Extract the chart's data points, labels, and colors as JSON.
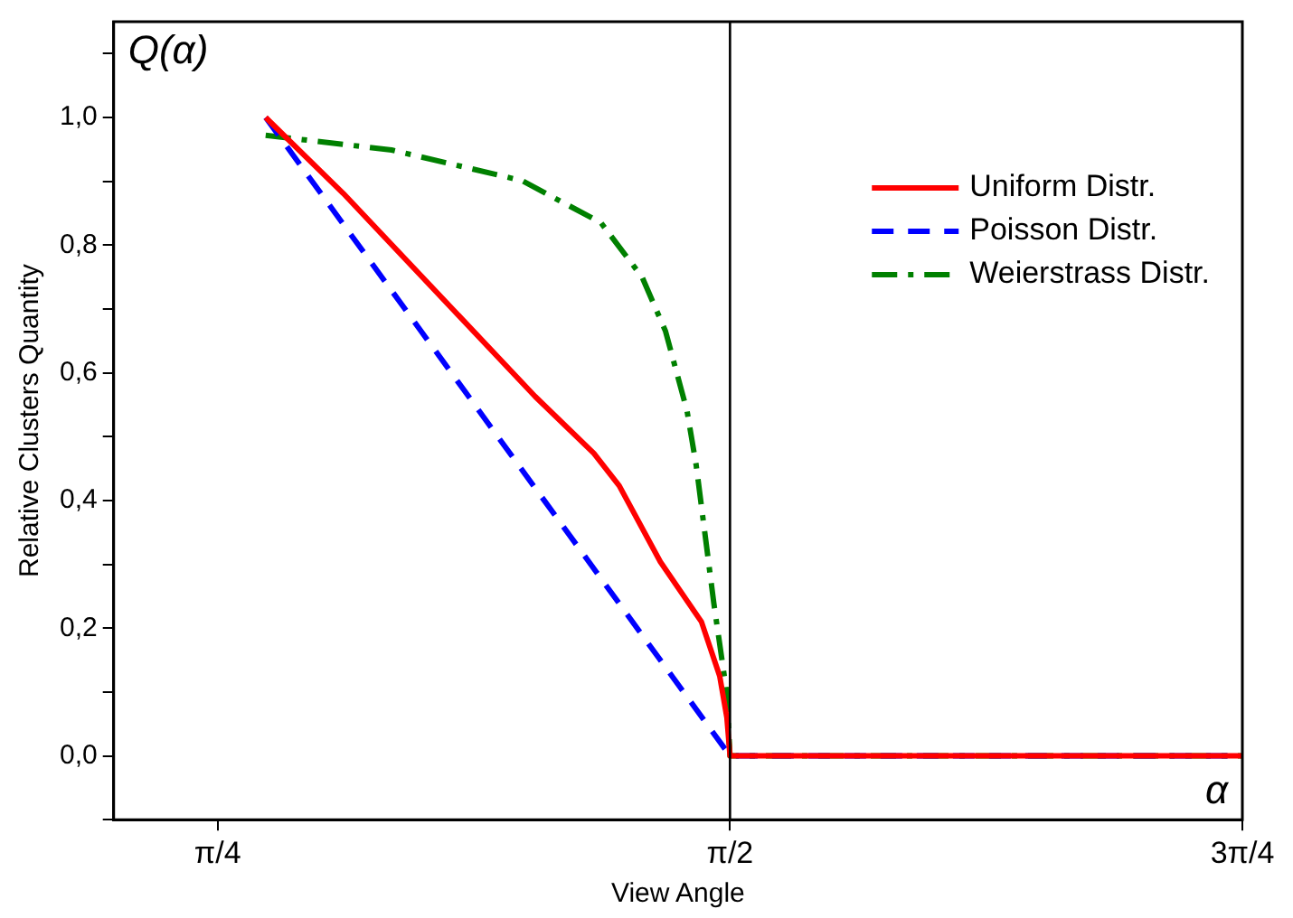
{
  "chart_data": {
    "type": "line",
    "xlabel": "View Angle",
    "ylabel": "Relative Clusters Quantity",
    "annotations": [
      "Q(α)",
      "α"
    ],
    "xlim": [
      0.626,
      2.3562
    ],
    "ylim": [
      -0.1,
      1.15
    ],
    "xticks": [
      {
        "value": 0.7854,
        "label": "π/4"
      },
      {
        "value": 1.5708,
        "label": "π/2"
      },
      {
        "value": 2.3562,
        "label": "3π/4"
      }
    ],
    "yticks": [
      {
        "value": -0.1,
        "label": null
      },
      {
        "value": 0,
        "label": "0,0"
      },
      {
        "value": 0.1,
        "label": null
      },
      {
        "value": 0.2,
        "label": "0,2"
      },
      {
        "value": 0.3,
        "label": null
      },
      {
        "value": 0.4,
        "label": "0,4"
      },
      {
        "value": 0.5,
        "label": null
      },
      {
        "value": 0.6,
        "label": "0,6"
      },
      {
        "value": 0.7,
        "label": null
      },
      {
        "value": 0.8,
        "label": "0,8"
      },
      {
        "value": 0.9,
        "label": null
      },
      {
        "value": 1,
        "label": "1,0"
      },
      {
        "value": 1.1,
        "label": null
      }
    ],
    "grid": false,
    "legend": "top right",
    "marker": "none",
    "ref_lines": [
      {
        "axis": "x",
        "value": 1.5708,
        "label": null,
        "color": "#000000",
        "line_style": "solid"
      }
    ],
    "series": [
      {
        "name": "Uniform Distr.",
        "color": "#ff0000",
        "line_style": "solid",
        "x": [
          0.859,
          0.978,
          1.162,
          1.272,
          1.362,
          1.401,
          1.464,
          1.527,
          1.555,
          1.566,
          1.5708,
          2.3562
        ],
        "values": [
          1.0,
          0.881,
          0.682,
          0.563,
          0.474,
          0.423,
          0.304,
          0.21,
          0.125,
          0.06,
          0,
          0
        ]
      },
      {
        "name": "Poisson Distr.",
        "color": "#0000ff",
        "line_style": "dashed",
        "x": [
          0.859,
          1.5708,
          2.3562
        ],
        "values": [
          1.0,
          0,
          0
        ]
      },
      {
        "name": "Weierstrass Distr.",
        "color": "#008000",
        "line_style": "dashdot",
        "x": [
          0.859,
          1.052,
          1.252,
          1.373,
          1.436,
          1.472,
          1.505,
          1.519,
          1.546,
          1.566,
          1.5708,
          2.3562
        ],
        "values": [
          0.972,
          0.949,
          0.901,
          0.835,
          0.75,
          0.665,
          0.54,
          0.455,
          0.239,
          0.097,
          0,
          0
        ]
      }
    ]
  }
}
